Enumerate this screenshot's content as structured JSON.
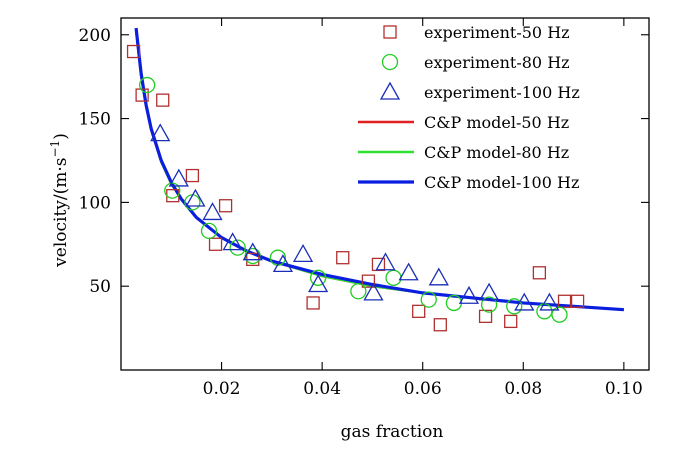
{
  "chart_data": {
    "type": "scatter",
    "xlabel": "gas fraction",
    "ylabel": "velocity/(m·s",
    "ylabel_exponent": "−1",
    "ylabel_suffix": ")",
    "xlim": [
      0,
      0.105
    ],
    "ylim": [
      0,
      210
    ],
    "xticks": [
      0.02,
      0.04,
      0.06,
      0.08,
      0.1
    ],
    "xtick_labels": [
      "0.02",
      "0.04",
      "0.06",
      "0.08",
      "0.10"
    ],
    "yticks": [
      50,
      100,
      150,
      200
    ],
    "ytick_labels": [
      "50",
      "100",
      "150",
      "200"
    ],
    "legend_position": "top-right",
    "series": [
      {
        "name": "experiment-50 Hz",
        "kind": "markers",
        "marker": "square",
        "color": "#b03030",
        "points": [
          [
            0.0025,
            190
          ],
          [
            0.0042,
            164
          ],
          [
            0.0083,
            161
          ],
          [
            0.0103,
            104
          ],
          [
            0.0142,
            116
          ],
          [
            0.0188,
            75
          ],
          [
            0.0208,
            98
          ],
          [
            0.0262,
            66
          ],
          [
            0.0382,
            40
          ],
          [
            0.0441,
            67
          ],
          [
            0.0492,
            53
          ],
          [
            0.0512,
            63
          ],
          [
            0.0592,
            35
          ],
          [
            0.0635,
            27
          ],
          [
            0.0725,
            32
          ],
          [
            0.0775,
            29
          ],
          [
            0.0832,
            58
          ],
          [
            0.0882,
            41
          ],
          [
            0.0908,
            41
          ]
        ]
      },
      {
        "name": "experiment-80 Hz",
        "kind": "markers",
        "marker": "circle",
        "color": "#22cc22",
        "points": [
          [
            0.0052,
            170
          ],
          [
            0.0102,
            107
          ],
          [
            0.0142,
            100
          ],
          [
            0.0175,
            83
          ],
          [
            0.0232,
            73
          ],
          [
            0.0262,
            68
          ],
          [
            0.0312,
            67
          ],
          [
            0.0392,
            55
          ],
          [
            0.0472,
            47
          ],
          [
            0.0542,
            55
          ],
          [
            0.0612,
            42
          ],
          [
            0.0662,
            40
          ],
          [
            0.0732,
            39
          ],
          [
            0.0782,
            38
          ],
          [
            0.0842,
            35
          ],
          [
            0.0872,
            33
          ]
        ]
      },
      {
        "name": "experiment-100 Hz",
        "kind": "markers",
        "marker": "triangle",
        "color": "#1a2eb8",
        "points": [
          [
            0.0078,
            141
          ],
          [
            0.0115,
            114
          ],
          [
            0.0148,
            102
          ],
          [
            0.0182,
            94
          ],
          [
            0.0222,
            76
          ],
          [
            0.0262,
            70
          ],
          [
            0.0322,
            63
          ],
          [
            0.0362,
            69
          ],
          [
            0.0392,
            51
          ],
          [
            0.0502,
            46
          ],
          [
            0.0526,
            64
          ],
          [
            0.0572,
            58
          ],
          [
            0.0632,
            55
          ],
          [
            0.0692,
            44
          ],
          [
            0.0732,
            46
          ],
          [
            0.0802,
            40
          ],
          [
            0.0852,
            40
          ]
        ]
      },
      {
        "name": "C&P model-50 Hz",
        "kind": "line",
        "color": "#e02020",
        "x": [
          0.003,
          0.004,
          0.005,
          0.006,
          0.008,
          0.01,
          0.012,
          0.015,
          0.02,
          0.025,
          0.03,
          0.04,
          0.05,
          0.06,
          0.07,
          0.08,
          0.09,
          0.1
        ],
        "y": [
          202,
          175,
          157,
          143,
          124,
          111,
          102,
          91,
          79,
          71,
          65,
          56,
          50,
          46,
          43,
          40,
          38,
          36
        ]
      },
      {
        "name": "C&P model-80 Hz",
        "kind": "line",
        "color": "#30e030",
        "x": [
          0.003,
          0.004,
          0.005,
          0.006,
          0.008,
          0.01,
          0.012,
          0.015,
          0.02,
          0.025,
          0.03,
          0.04,
          0.05,
          0.06,
          0.07,
          0.08,
          0.09,
          0.1
        ],
        "y": [
          203,
          176,
          157,
          144,
          124,
          111,
          102,
          91,
          79,
          71,
          65,
          56,
          50,
          46,
          43,
          40,
          38,
          36
        ]
      },
      {
        "name": "C&P model-100 Hz",
        "kind": "line",
        "color": "#0a1ee0",
        "x": [
          0.003,
          0.004,
          0.005,
          0.006,
          0.008,
          0.01,
          0.012,
          0.015,
          0.02,
          0.025,
          0.03,
          0.04,
          0.05,
          0.06,
          0.07,
          0.08,
          0.09,
          0.1
        ],
        "y": [
          204,
          177,
          158,
          144,
          125,
          112,
          102,
          91,
          79,
          71,
          65,
          57,
          51,
          46,
          43,
          40,
          38,
          36
        ]
      }
    ]
  }
}
